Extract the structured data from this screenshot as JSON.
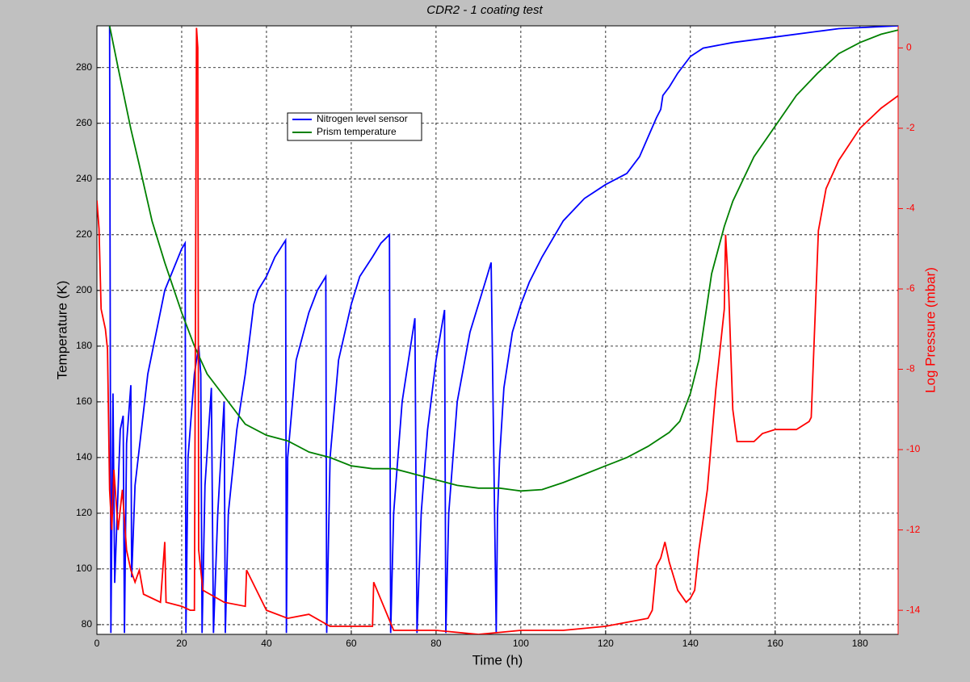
{
  "chart_data": {
    "type": "line",
    "title": "CDR2 - 1 coating test",
    "xlabel": "Time (h)",
    "ylabel": "Temperature (K)",
    "y2label": "Log Pressure (mbar)",
    "xlim": [
      0,
      189
    ],
    "xticks": [
      0,
      20,
      40,
      60,
      80,
      100,
      120,
      140,
      160,
      180
    ],
    "ylim": [
      76.5,
      295
    ],
    "yticks": [
      80,
      100,
      120,
      140,
      160,
      180,
      200,
      220,
      240,
      260,
      280
    ],
    "y2lim": [
      -14.6,
      0.55
    ],
    "y2ticks": [
      0,
      -2,
      -4,
      -6,
      -8,
      -10,
      -12,
      -14
    ],
    "y2color": "#ff0000",
    "grid": true,
    "series": [
      {
        "name": "Nitrogen level sensor",
        "color": "#0000ff",
        "x": [
          3,
          3.3,
          3.8,
          4.2,
          5.5,
          6.2,
          6.5,
          7,
          8,
          8.2,
          9,
          12,
          16,
          20,
          20.8,
          21,
          21.5,
          23,
          24,
          24.5,
          24.8,
          25.5,
          27,
          27.5,
          28.5,
          30,
          30.3,
          31,
          33,
          35,
          37,
          38,
          40,
          42,
          44.5,
          44.7,
          45,
          47,
          50,
          52,
          54,
          54.2,
          55,
          57,
          60,
          62,
          65,
          67,
          69,
          69.3,
          70,
          72,
          74,
          75,
          75.5,
          76.5,
          78,
          80,
          82,
          82.3,
          83,
          85,
          88,
          90,
          92,
          93,
          94.2,
          94.5,
          95,
          96,
          98,
          100,
          102,
          105,
          110,
          115,
          120,
          125,
          128,
          130,
          132,
          133,
          133.5,
          135,
          137,
          140,
          143,
          150,
          160,
          170,
          175,
          189
        ],
        "values": [
          295,
          77,
          163,
          95,
          150,
          155,
          77,
          145,
          166,
          97,
          130,
          170,
          200,
          215,
          217,
          77,
          140,
          170,
          180,
          170,
          77,
          130,
          165,
          77,
          120,
          160,
          77,
          120,
          150,
          170,
          195,
          200,
          205,
          212,
          218,
          77,
          140,
          175,
          192,
          200,
          205,
          77,
          140,
          175,
          195,
          205,
          212,
          217,
          220,
          77,
          120,
          160,
          180,
          190,
          77,
          120,
          150,
          175,
          193,
          77,
          120,
          160,
          185,
          195,
          205,
          210,
          77,
          120,
          140,
          165,
          185,
          195,
          203,
          212,
          225,
          233,
          238,
          242,
          248,
          255,
          262,
          265,
          270,
          273,
          278,
          284,
          287,
          289,
          291,
          293,
          294,
          295
        ]
      },
      {
        "name": "Prism  temperature",
        "color": "#008000",
        "x": [
          3,
          5,
          8,
          10,
          13,
          16,
          20,
          23,
          26,
          30,
          35,
          40,
          45,
          50,
          55,
          60,
          65,
          70,
          75,
          80,
          85,
          90,
          95,
          100,
          105,
          110,
          115,
          120,
          125,
          130,
          135,
          137.5,
          140,
          142,
          145,
          148,
          150,
          155,
          160,
          165,
          170,
          175,
          180,
          185,
          189
        ],
        "values": [
          295,
          280,
          258,
          245,
          225,
          210,
          192,
          180,
          170,
          162,
          152,
          148,
          146,
          142,
          140,
          137,
          136,
          136,
          134,
          132,
          130,
          129,
          129,
          128,
          128.5,
          131,
          134,
          137,
          140,
          144,
          149,
          153,
          163,
          175,
          206,
          223,
          232,
          248,
          259,
          270,
          278,
          285,
          289,
          292,
          293.5
        ]
      },
      {
        "color": "#ff0000",
        "axis": "y2",
        "x": [
          0,
          0.5,
          1,
          2,
          2.5,
          3,
          3.5,
          4,
          5,
          6,
          7,
          8,
          9,
          10,
          11,
          15,
          16,
          16.3,
          20,
          22,
          23,
          23.5,
          23.8,
          24,
          25,
          30,
          35,
          35.3,
          40,
          45,
          50,
          55,
          60,
          65,
          65.3,
          70,
          80,
          90,
          100,
          110,
          120,
          130,
          131,
          132,
          133,
          134,
          135,
          137,
          139,
          140,
          141,
          142,
          144,
          146,
          148,
          148.3,
          149,
          150,
          151,
          155,
          157,
          160,
          165,
          168,
          168.5,
          170.2,
          172,
          175,
          180,
          185,
          189
        ],
        "values": [
          -3.8,
          -4.5,
          -6.5,
          -7,
          -7.5,
          -11,
          -12,
          -10.5,
          -12,
          -11,
          -12.5,
          -13,
          -13.3,
          -13,
          -13.6,
          -13.8,
          -12.3,
          -13.8,
          -13.9,
          -14,
          -14,
          0.5,
          0,
          -12.5,
          -13.5,
          -13.8,
          -13.9,
          -13,
          -14,
          -14.2,
          -14.1,
          -14.4,
          -14.4,
          -14.4,
          -13.3,
          -14.5,
          -14.5,
          -14.6,
          -14.5,
          -14.5,
          -14.4,
          -14.2,
          -14,
          -12.9,
          -12.7,
          -12.3,
          -12.8,
          -13.5,
          -13.8,
          -13.7,
          -13.5,
          -12.5,
          -11,
          -8.5,
          -6.5,
          -4.65,
          -6,
          -9,
          -9.8,
          -9.8,
          -9.6,
          -9.5,
          -9.5,
          -9.3,
          -9.2,
          -4.55,
          -3.5,
          -2.8,
          -2,
          -1.5,
          -1.19
        ]
      }
    ]
  }
}
